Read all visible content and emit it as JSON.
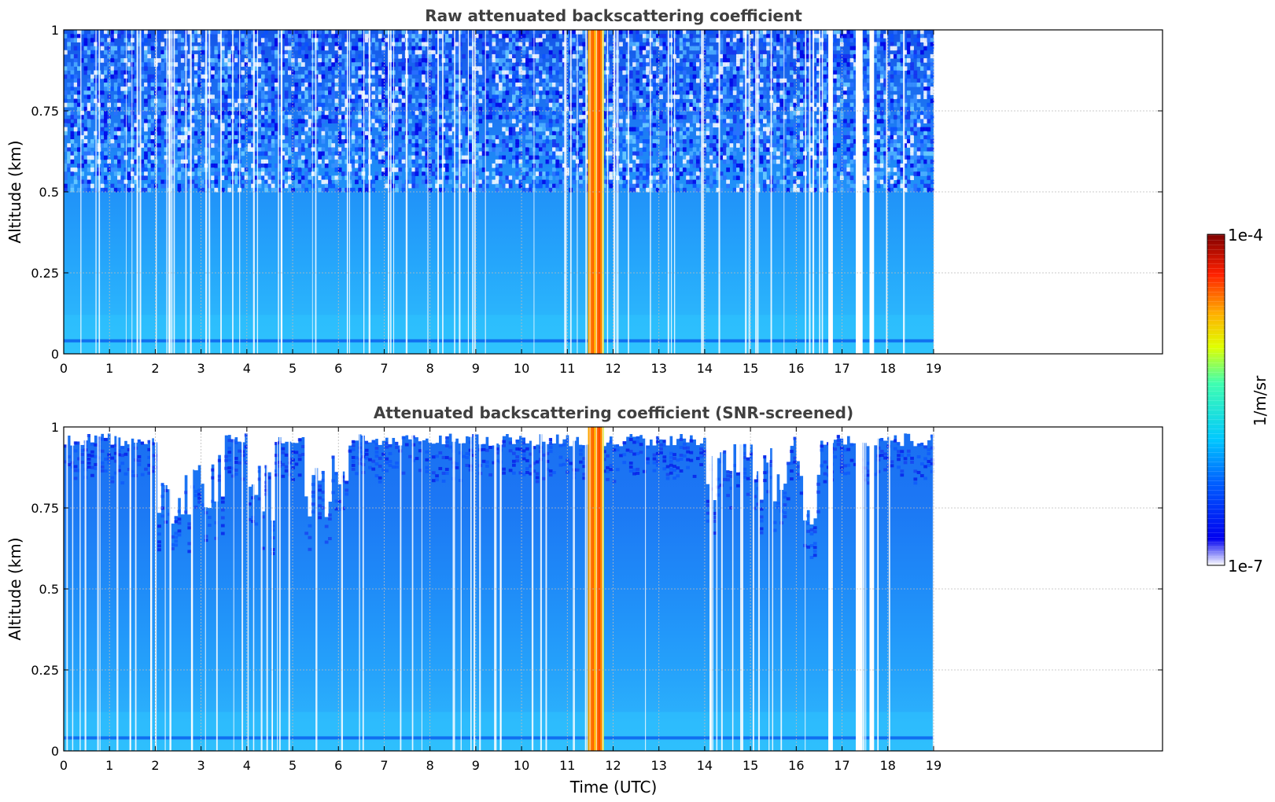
{
  "figure": {
    "xlabel": "Time (UTC)",
    "colorbar": {
      "label": "1/m/sr",
      "max_label": "1e-4",
      "min_label": "1e-7",
      "scale": "log",
      "range": [
        1e-07,
        0.0001
      ],
      "colormap": "jet"
    }
  },
  "chart_data": [
    {
      "type": "heatmap",
      "title": "Raw attenuated backscattering coefficient",
      "xlabel": "",
      "ylabel": "Altitude (km)",
      "xlim": [
        0,
        24
      ],
      "ylim": [
        0,
        1
      ],
      "xticks": [
        "0",
        "1",
        "2",
        "3",
        "4",
        "5",
        "6",
        "7",
        "8",
        "9",
        "10",
        "11",
        "12",
        "13",
        "14",
        "15",
        "16",
        "17",
        "18",
        "19"
      ],
      "yticks": [
        "0",
        "0.25",
        "0.5",
        "0.75",
        "1"
      ],
      "grid": true,
      "data_extent_hours": [
        0,
        19
      ],
      "cloud_band_hours": [
        11.45,
        11.8
      ],
      "gap_bands_hours": [
        [
          16.7,
          16.8
        ],
        [
          17.3,
          17.45
        ],
        [
          17.6,
          17.7
        ]
      ]
    },
    {
      "type": "heatmap",
      "title": "Attenuated backscattering coefficient (SNR-screened)",
      "xlabel": "Time (UTC)",
      "ylabel": "Altitude (km)",
      "xlim": [
        0,
        24
      ],
      "ylim": [
        0,
        1
      ],
      "xticks": [
        "0",
        "1",
        "2",
        "3",
        "4",
        "5",
        "6",
        "7",
        "8",
        "9",
        "10",
        "11",
        "12",
        "13",
        "14",
        "15",
        "16",
        "17",
        "18",
        "19"
      ],
      "yticks": [
        "0",
        "0.25",
        "0.5",
        "0.75",
        "1"
      ],
      "grid": true,
      "data_extent_hours": [
        0,
        19
      ],
      "cloud_band_hours": [
        11.45,
        11.8
      ],
      "gap_bands_hours": [
        [
          16.7,
          16.8
        ],
        [
          17.3,
          17.45
        ],
        [
          17.6,
          17.7
        ]
      ]
    }
  ]
}
